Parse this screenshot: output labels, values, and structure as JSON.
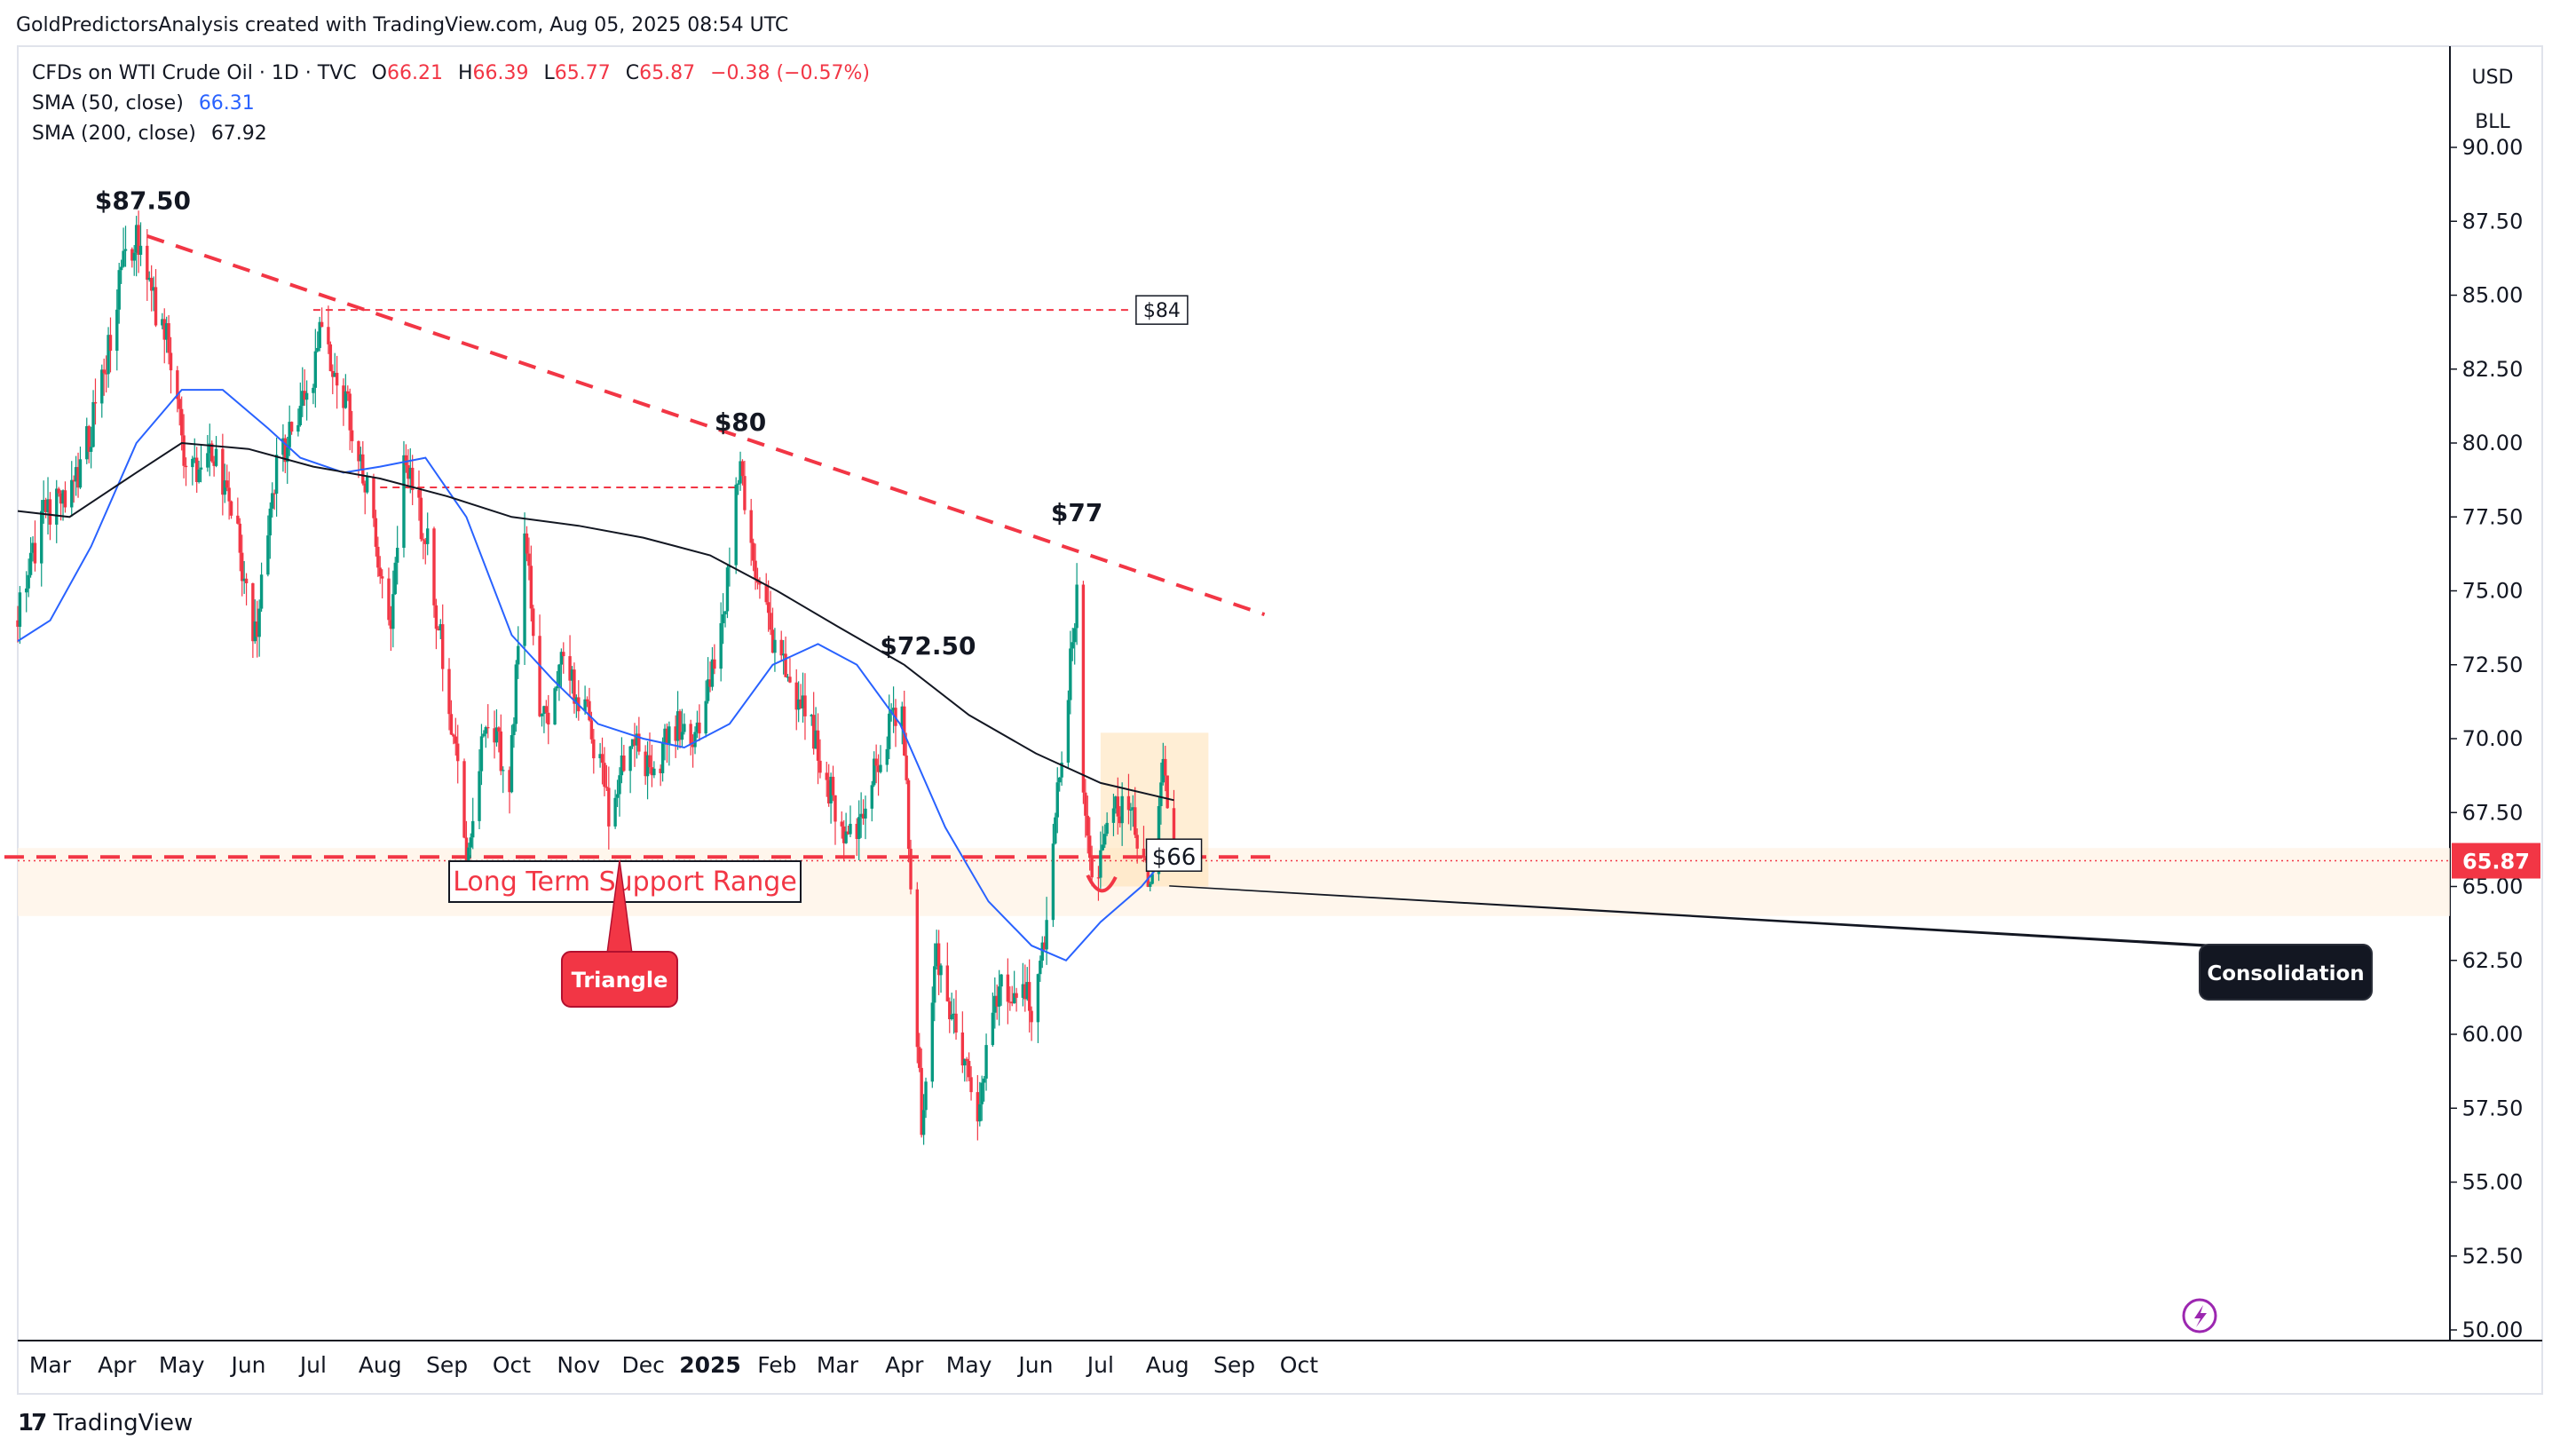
{
  "header": {
    "credit": "GoldPredictorsAnalysis created with TradingView.com, Aug 05, 2025 08:54 UTC",
    "symbol": "CFDs on WTI Crude Oil · 1D · TVC",
    "ohlc": {
      "o_label": "O",
      "o": "66.21",
      "h_label": "H",
      "h": "66.39",
      "l_label": "L",
      "l": "65.77",
      "c_label": "C",
      "c": "65.87",
      "change": "−0.38 (−0.57%)"
    },
    "sma50": {
      "label": "SMA (50, close)",
      "value": "66.31"
    },
    "sma200": {
      "label": "SMA (200, close)",
      "value": "67.92"
    }
  },
  "price_scale": {
    "currency": "USD",
    "unit": "BLL",
    "last_price": "65.87"
  },
  "footer": {
    "brand": "TradingView",
    "brand_mark": "17"
  },
  "colors": {
    "up": "#089981",
    "down": "#f23645",
    "sma50": "#2962ff",
    "sma200": "#131722",
    "annotation": "#f23645",
    "background": "#ffffff"
  },
  "annotations": {
    "peak_1": "$87.50",
    "peak_2": "$80",
    "peak_3": "$72.50",
    "peak_4": "$77",
    "level_84": "$84",
    "level_66": "$66",
    "support_box": "Long Term Support Range",
    "triangle": "Triangle",
    "consolidation": "Consolidation"
  },
  "chart_data": {
    "type": "candlestick",
    "ylim": [
      50,
      90
    ],
    "y_ticks": [
      "90.00",
      "87.50",
      "85.00",
      "82.50",
      "80.00",
      "77.50",
      "75.00",
      "72.50",
      "70.00",
      "67.50",
      "65.00",
      "62.50",
      "60.00",
      "57.50",
      "55.00",
      "52.50",
      "50.00"
    ],
    "x_ticks": [
      "Mar",
      "Apr",
      "May",
      "Jun",
      "Jul",
      "Aug",
      "Sep",
      "Oct",
      "Nov",
      "Dec",
      "2025",
      "Feb",
      "Mar",
      "Apr",
      "May",
      "Jun",
      "Jul",
      "Aug",
      "Sep",
      "Oct"
    ],
    "x_start": "2024-02-15",
    "price_path": [
      [
        "2024-02-15",
        74.0
      ],
      [
        "2024-02-26",
        77.5
      ],
      [
        "2024-03-12",
        78.5
      ],
      [
        "2024-03-22",
        81.0
      ],
      [
        "2024-04-05",
        86.5
      ],
      [
        "2024-04-12",
        87.0
      ],
      [
        "2024-04-19",
        84.5
      ],
      [
        "2024-04-26",
        83.0
      ],
      [
        "2024-05-03",
        79.0
      ],
      [
        "2024-05-15",
        79.5
      ],
      [
        "2024-05-24",
        78.0
      ],
      [
        "2024-06-04",
        73.5
      ],
      [
        "2024-06-14",
        79.0
      ],
      [
        "2024-06-28",
        81.5
      ],
      [
        "2024-07-05",
        83.8
      ],
      [
        "2024-07-12",
        82.5
      ],
      [
        "2024-07-26",
        78.5
      ],
      [
        "2024-08-05",
        73.5
      ],
      [
        "2024-08-12",
        79.5
      ],
      [
        "2024-08-23",
        76.5
      ],
      [
        "2024-09-04",
        70.0
      ],
      [
        "2024-09-10",
        66.0
      ],
      [
        "2024-09-20",
        71.0
      ],
      [
        "2024-09-30",
        68.5
      ],
      [
        "2024-10-07",
        77.2
      ],
      [
        "2024-10-15",
        70.5
      ],
      [
        "2024-10-25",
        72.5
      ],
      [
        "2024-11-05",
        71.0
      ],
      [
        "2024-11-15",
        67.5
      ],
      [
        "2024-11-25",
        70.0
      ],
      [
        "2024-12-05",
        68.5
      ],
      [
        "2024-12-15",
        70.5
      ],
      [
        "2024-12-27",
        70.0
      ],
      [
        "2025-01-07",
        74.0
      ],
      [
        "2025-01-15",
        79.5
      ],
      [
        "2025-01-22",
        75.5
      ],
      [
        "2025-02-03",
        72.5
      ],
      [
        "2025-02-14",
        71.0
      ],
      [
        "2025-03-05",
        66.5
      ],
      [
        "2025-03-12",
        67.5
      ],
      [
        "2025-03-31",
        71.5
      ],
      [
        "2025-04-03",
        66.5
      ],
      [
        "2025-04-09",
        57.0
      ],
      [
        "2025-04-16",
        62.5
      ],
      [
        "2025-05-02",
        58.0
      ],
      [
        "2025-05-05",
        57.0
      ],
      [
        "2025-05-15",
        62.0
      ],
      [
        "2025-05-30",
        61.0
      ],
      [
        "2025-06-05",
        63.0
      ],
      [
        "2025-06-11",
        68.0
      ],
      [
        "2025-06-20",
        75.0
      ],
      [
        "2025-06-23",
        68.5
      ],
      [
        "2025-06-27",
        65.0
      ],
      [
        "2025-07-07",
        67.5
      ],
      [
        "2025-07-14",
        68.0
      ],
      [
        "2025-07-21",
        65.5
      ],
      [
        "2025-07-25",
        65.5
      ],
      [
        "2025-07-30",
        69.5
      ],
      [
        "2025-08-04",
        65.9
      ]
    ],
    "series": [
      {
        "name": "SMA (50, close)",
        "points": [
          [
            "2024-02-15",
            73.3
          ],
          [
            "2024-03-01",
            74.0
          ],
          [
            "2024-03-20",
            76.5
          ],
          [
            "2024-04-10",
            80.0
          ],
          [
            "2024-05-01",
            81.8
          ],
          [
            "2024-05-20",
            81.8
          ],
          [
            "2024-06-10",
            80.5
          ],
          [
            "2024-06-25",
            79.5
          ],
          [
            "2024-07-15",
            79.0
          ],
          [
            "2024-08-01",
            79.2
          ],
          [
            "2024-08-22",
            79.5
          ],
          [
            "2024-09-10",
            77.5
          ],
          [
            "2024-10-01",
            73.5
          ],
          [
            "2024-10-20",
            72.0
          ],
          [
            "2024-11-10",
            70.5
          ],
          [
            "2024-12-01",
            70.0
          ],
          [
            "2024-12-20",
            69.7
          ],
          [
            "2025-01-10",
            70.5
          ],
          [
            "2025-01-30",
            72.5
          ],
          [
            "2025-02-20",
            73.2
          ],
          [
            "2025-03-10",
            72.5
          ],
          [
            "2025-03-30",
            70.5
          ],
          [
            "2025-04-20",
            67.0
          ],
          [
            "2025-05-10",
            64.5
          ],
          [
            "2025-05-30",
            63.0
          ],
          [
            "2025-06-15",
            62.5
          ],
          [
            "2025-07-01",
            63.8
          ],
          [
            "2025-07-20",
            65.0
          ],
          [
            "2025-08-04",
            66.31
          ]
        ]
      },
      {
        "name": "SMA (200, close)",
        "points": [
          [
            "2024-02-15",
            77.7
          ],
          [
            "2024-03-10",
            77.5
          ],
          [
            "2024-04-10",
            79.0
          ],
          [
            "2024-05-01",
            80.0
          ],
          [
            "2024-06-01",
            79.8
          ],
          [
            "2024-07-01",
            79.2
          ],
          [
            "2024-08-01",
            78.8
          ],
          [
            "2024-09-01",
            78.2
          ],
          [
            "2024-10-01",
            77.5
          ],
          [
            "2024-11-01",
            77.2
          ],
          [
            "2024-12-01",
            76.8
          ],
          [
            "2025-01-01",
            76.2
          ],
          [
            "2025-02-01",
            75.0
          ],
          [
            "2025-03-01",
            73.8
          ],
          [
            "2025-04-01",
            72.5
          ],
          [
            "2025-05-01",
            70.8
          ],
          [
            "2025-06-01",
            69.5
          ],
          [
            "2025-07-01",
            68.5
          ],
          [
            "2025-08-04",
            67.92
          ]
        ]
      }
    ],
    "trendline_start": [
      "2024-04-15",
      87.0
    ],
    "trendline_end": [
      "2025-09-15",
      74.2
    ],
    "level_84_start": "2024-07-01",
    "level_84_end": "2025-07-15",
    "level_78_start": "2024-08-01",
    "level_78_end": "2025-01-15",
    "level_78_value": 78.5,
    "support_level": 66,
    "support_band": [
      64.0,
      66.3
    ],
    "support_line_start": "2024-01-25",
    "support_line_end": "2025-09-22",
    "triangle_apex": [
      "2024-11-20",
      66.0
    ],
    "consolidation_window": [
      "2025-07-01",
      "2025-08-20"
    ],
    "consolidation_range": [
      65.0,
      70.2
    ],
    "consolidation_point": [
      "2025-08-01",
      65.2
    ]
  }
}
